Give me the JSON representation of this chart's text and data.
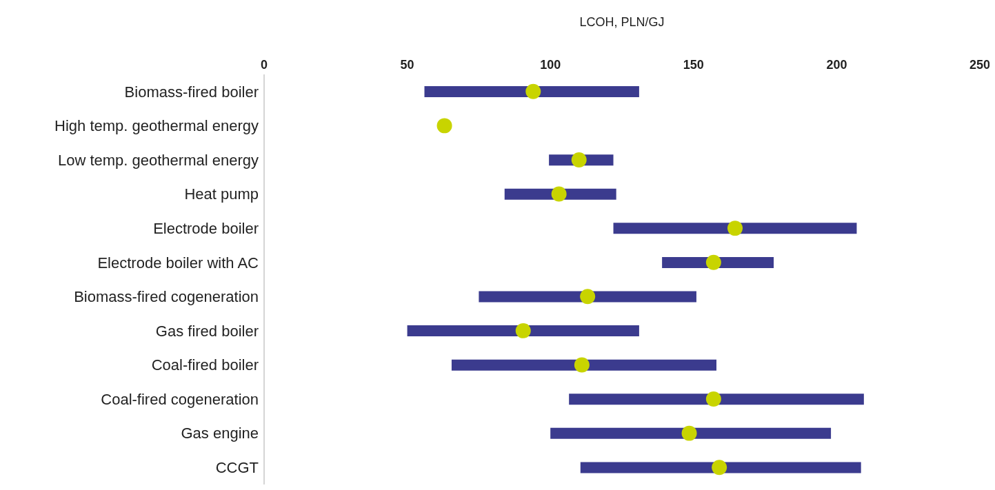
{
  "chart_data": {
    "type": "bar",
    "orientation": "horizontal",
    "xlabel": "LCOH, PLN/GJ",
    "categories": [
      "Biomass-fired boiler",
      "High temp. geothermal energy",
      "Low temp. geothermal energy",
      "Heat pump",
      "Electrode boiler",
      "Electrode boiler with AC",
      "Biomass-fired cogeneration",
      "Gas fired boiler",
      "Coal-fired boiler",
      "Coal-fired cogeneration",
      "Gas engine",
      "CCGT"
    ],
    "xlim": [
      0,
      250
    ],
    "xticks": [
      0,
      50,
      100,
      150,
      200,
      250
    ],
    "series": [
      {
        "type": "bar",
        "color": "#3b3b8e",
        "base": [
          56,
          null,
          99.5,
          84,
          122,
          139,
          75,
          50,
          65.5,
          106.5,
          100,
          110.5
        ],
        "values": [
          75,
          null,
          22.5,
          39,
          85,
          39,
          76,
          81,
          92.5,
          103,
          98,
          98
        ]
      },
      {
        "type": "scatter",
        "color": "#c8d400",
        "marker": "circle",
        "values": [
          94,
          63,
          110,
          103,
          164.5,
          157,
          113,
          90.5,
          111,
          157,
          148.5,
          159
        ]
      }
    ]
  }
}
